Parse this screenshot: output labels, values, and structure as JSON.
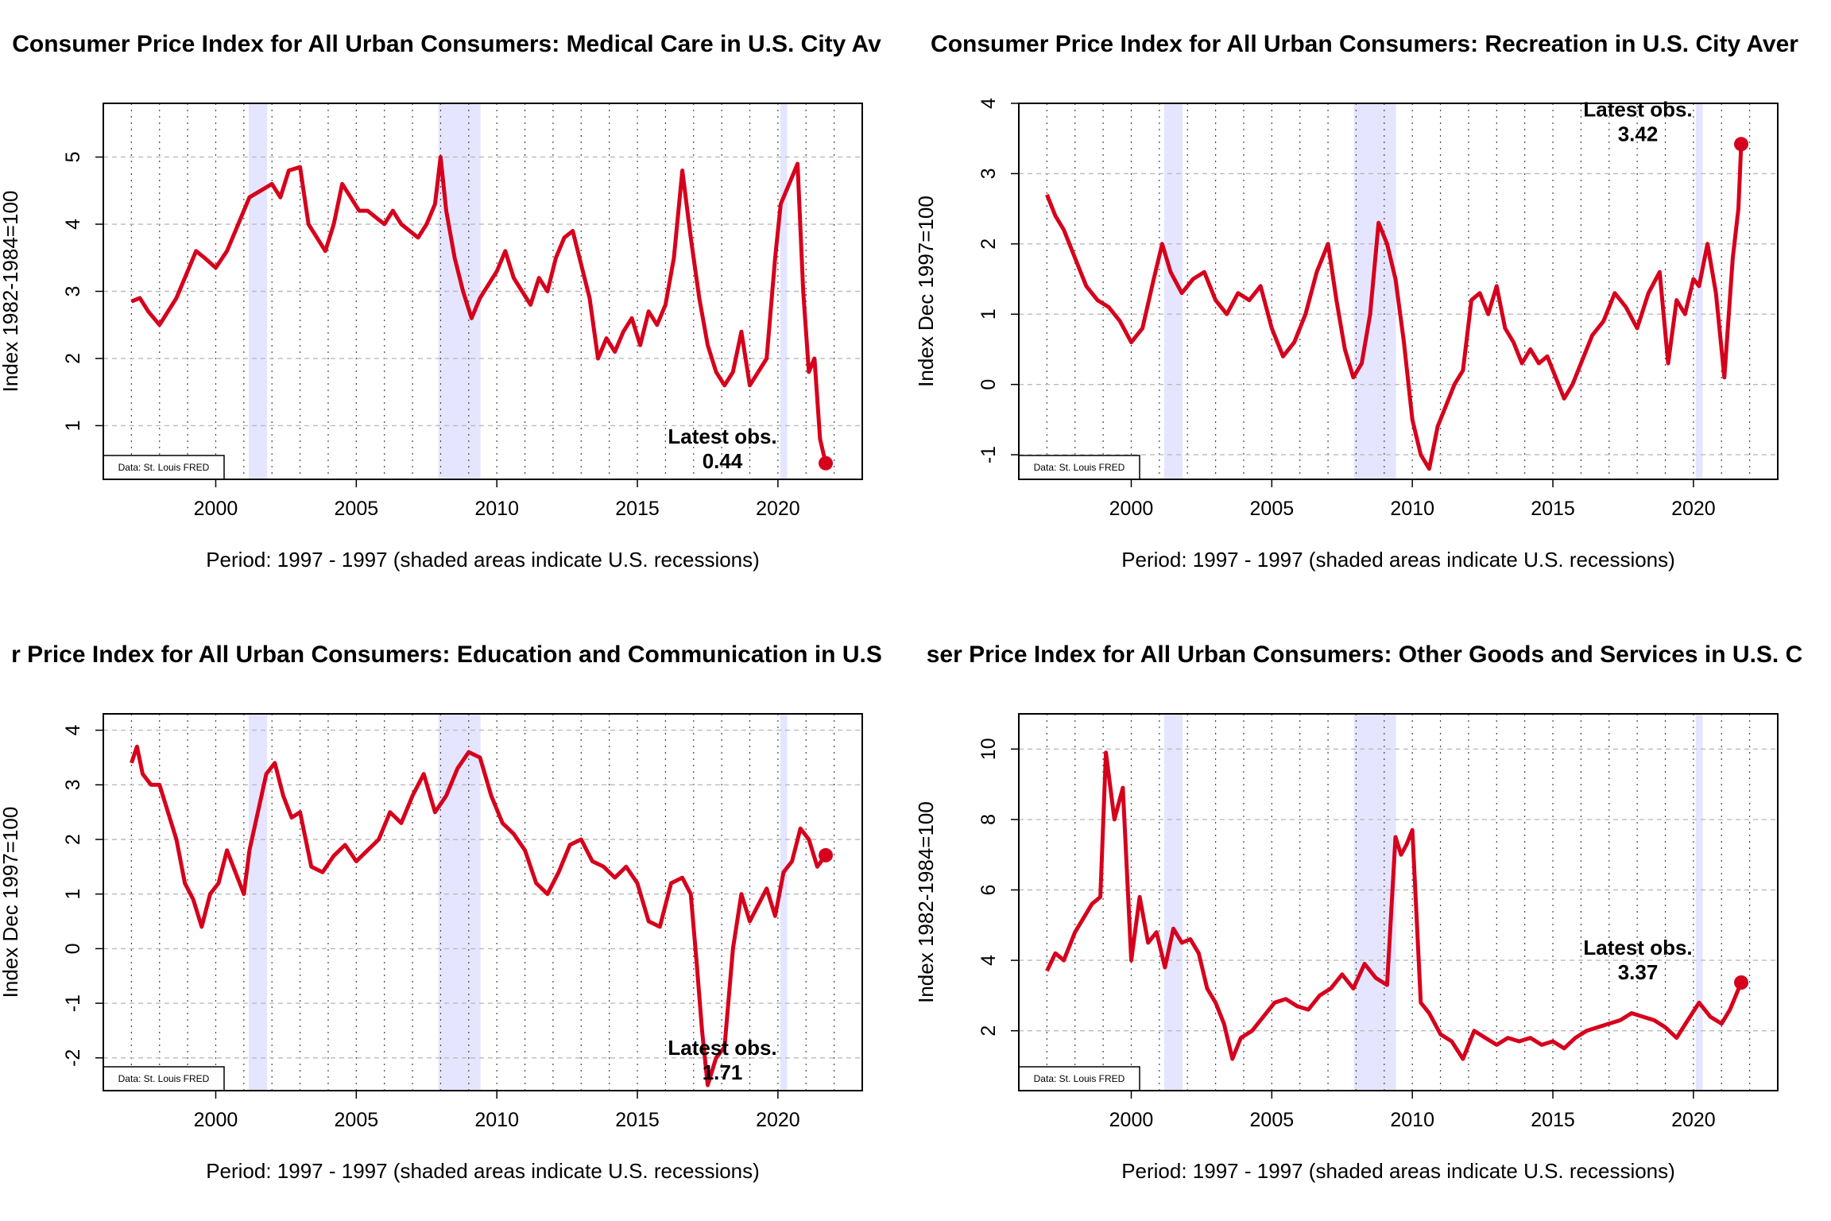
{
  "source_label": "Data: St. Louis FRED",
  "colors": {
    "line": "#d6001c",
    "recession": "#e5e5ff",
    "grid": "#bbbbbb"
  },
  "recessions": [
    [
      2001.17,
      2001.83
    ],
    [
      2007.92,
      2009.42
    ],
    [
      2020.08,
      2020.33
    ]
  ],
  "chart_data": [
    {
      "type": "line",
      "title": "Consumer Price Index for All Urban Consumers: Medical Care in U.S. City Av",
      "xlabel": "Period: 1997 - 1997 (shaded areas indicate U.S. recessions)",
      "ylabel": "Index 1982-1984=100",
      "xlim": [
        1996,
        2023
      ],
      "ylim": [
        0.2,
        5.8
      ],
      "xticks": [
        "2000",
        "2005",
        "2010",
        "2015",
        "2020"
      ],
      "yticks": [
        "1",
        "2",
        "3",
        "4",
        "5"
      ],
      "latest_label": "Latest obs.",
      "latest_value": "0.44",
      "series": [
        {
          "x": [
            1997.0,
            1997.3,
            1997.6,
            1998.0,
            1998.3,
            1998.6,
            1999.0,
            1999.3,
            1999.6,
            2000.0,
            2000.4,
            2000.8,
            2001.2,
            2001.6,
            2002.0,
            2002.3,
            2002.6,
            2003.0,
            2003.3,
            2003.6,
            2003.9,
            2004.2,
            2004.5,
            2004.8,
            2005.1,
            2005.4,
            2005.7,
            2006.0,
            2006.3,
            2006.6,
            2006.9,
            2007.2,
            2007.5,
            2007.8,
            2008.0,
            2008.2,
            2008.5,
            2008.8,
            2009.1,
            2009.4,
            2009.7,
            2010.0,
            2010.3,
            2010.6,
            2010.9,
            2011.2,
            2011.5,
            2011.8,
            2012.1,
            2012.4,
            2012.7,
            2013.0,
            2013.3,
            2013.6,
            2013.9,
            2014.2,
            2014.5,
            2014.8,
            2015.1,
            2015.4,
            2015.7,
            2016.0,
            2016.3,
            2016.6,
            2016.9,
            2017.2,
            2017.5,
            2017.8,
            2018.1,
            2018.4,
            2018.7,
            2019.0,
            2019.3,
            2019.6,
            2019.9,
            2020.1,
            2020.4,
            2020.7,
            2020.9,
            2021.1,
            2021.3,
            2021.5,
            2021.7
          ],
          "y": [
            2.85,
            2.9,
            2.7,
            2.5,
            2.7,
            2.9,
            3.3,
            3.6,
            3.5,
            3.35,
            3.6,
            4.0,
            4.4,
            4.5,
            4.6,
            4.4,
            4.8,
            4.85,
            4.0,
            3.8,
            3.6,
            4.0,
            4.6,
            4.4,
            4.2,
            4.2,
            4.1,
            4.0,
            4.2,
            4.0,
            3.9,
            3.8,
            4.0,
            4.3,
            5.0,
            4.2,
            3.5,
            3.0,
            2.6,
            2.9,
            3.1,
            3.3,
            3.6,
            3.2,
            3.0,
            2.8,
            3.2,
            3.0,
            3.5,
            3.8,
            3.9,
            3.4,
            2.9,
            2.0,
            2.3,
            2.1,
            2.4,
            2.6,
            2.2,
            2.7,
            2.5,
            2.8,
            3.5,
            4.8,
            3.8,
            2.9,
            2.2,
            1.8,
            1.6,
            1.8,
            2.4,
            1.6,
            1.8,
            2.0,
            3.5,
            4.3,
            4.6,
            4.9,
            3.0,
            1.8,
            2.0,
            0.8,
            0.44
          ]
        }
      ]
    },
    {
      "type": "line",
      "title": "Consumer Price Index for All Urban Consumers: Recreation in U.S. City Aver",
      "xlabel": "Period: 1997 - 1997 (shaded areas indicate U.S. recessions)",
      "ylabel": "Index Dec 1997=100",
      "xlim": [
        1996,
        2023
      ],
      "ylim": [
        -1.35,
        4.0
      ],
      "xticks": [
        "2000",
        "2005",
        "2010",
        "2015",
        "2020"
      ],
      "yticks": [
        "-1",
        "0",
        "1",
        "2",
        "3",
        "4"
      ],
      "latest_label": "Latest obs.",
      "latest_value": "3.42",
      "series": [
        {
          "x": [
            1997.0,
            1997.3,
            1997.6,
            1998.0,
            1998.4,
            1998.8,
            1999.2,
            1999.6,
            2000.0,
            2000.4,
            2000.8,
            2001.1,
            2001.4,
            2001.8,
            2002.2,
            2002.6,
            2003.0,
            2003.4,
            2003.8,
            2004.2,
            2004.6,
            2005.0,
            2005.4,
            2005.8,
            2006.2,
            2006.6,
            2007.0,
            2007.3,
            2007.6,
            2007.9,
            2008.2,
            2008.5,
            2008.8,
            2009.1,
            2009.4,
            2009.7,
            2010.0,
            2010.3,
            2010.6,
            2010.9,
            2011.2,
            2011.5,
            2011.8,
            2012.1,
            2012.4,
            2012.7,
            2013.0,
            2013.3,
            2013.6,
            2013.9,
            2014.2,
            2014.5,
            2014.8,
            2015.1,
            2015.4,
            2015.7,
            2016.0,
            2016.4,
            2016.8,
            2017.2,
            2017.6,
            2018.0,
            2018.4,
            2018.8,
            2019.1,
            2019.4,
            2019.7,
            2020.0,
            2020.2,
            2020.5,
            2020.8,
            2021.1,
            2021.4,
            2021.6,
            2021.7
          ],
          "y": [
            2.7,
            2.4,
            2.2,
            1.8,
            1.4,
            1.2,
            1.1,
            0.9,
            0.6,
            0.8,
            1.5,
            2.0,
            1.6,
            1.3,
            1.5,
            1.6,
            1.2,
            1.0,
            1.3,
            1.2,
            1.4,
            0.8,
            0.4,
            0.6,
            1.0,
            1.6,
            2.0,
            1.2,
            0.5,
            0.1,
            0.3,
            1.0,
            2.3,
            2.0,
            1.5,
            0.6,
            -0.5,
            -1.0,
            -1.2,
            -0.6,
            -0.3,
            0.0,
            0.2,
            1.2,
            1.3,
            1.0,
            1.4,
            0.8,
            0.6,
            0.3,
            0.5,
            0.3,
            0.4,
            0.1,
            -0.2,
            0.0,
            0.3,
            0.7,
            0.9,
            1.3,
            1.1,
            0.8,
            1.3,
            1.6,
            0.3,
            1.2,
            1.0,
            1.5,
            1.4,
            2.0,
            1.3,
            0.1,
            1.8,
            2.5,
            3.42
          ]
        }
      ]
    },
    {
      "type": "line",
      "title": "r Price Index for All Urban Consumers: Education and Communication in U.S",
      "xlabel": "Period: 1997 - 1997 (shaded areas indicate U.S. recessions)",
      "ylabel": "Index Dec 1997=100",
      "xlim": [
        1996,
        2023
      ],
      "ylim": [
        -2.6,
        4.3
      ],
      "xticks": [
        "2000",
        "2005",
        "2010",
        "2015",
        "2020"
      ],
      "yticks": [
        "-2",
        "-1",
        "0",
        "1",
        "2",
        "3",
        "4"
      ],
      "latest_label": "Latest obs.",
      "latest_value": "1.71",
      "series": [
        {
          "x": [
            1997.0,
            1997.2,
            1997.4,
            1997.7,
            1998.0,
            1998.3,
            1998.6,
            1998.9,
            1999.2,
            1999.5,
            1999.8,
            2000.1,
            2000.4,
            2000.7,
            2001.0,
            2001.2,
            2001.5,
            2001.8,
            2002.1,
            2002.4,
            2002.7,
            2003.0,
            2003.4,
            2003.8,
            2004.2,
            2004.6,
            2005.0,
            2005.4,
            2005.8,
            2006.2,
            2006.6,
            2007.0,
            2007.4,
            2007.8,
            2008.2,
            2008.6,
            2009.0,
            2009.4,
            2009.8,
            2010.2,
            2010.6,
            2011.0,
            2011.4,
            2011.8,
            2012.2,
            2012.6,
            2013.0,
            2013.4,
            2013.8,
            2014.2,
            2014.6,
            2015.0,
            2015.4,
            2015.8,
            2016.2,
            2016.6,
            2016.9,
            2017.1,
            2017.3,
            2017.5,
            2017.8,
            2018.1,
            2018.4,
            2018.7,
            2019.0,
            2019.3,
            2019.6,
            2019.9,
            2020.2,
            2020.5,
            2020.8,
            2021.1,
            2021.4,
            2021.7
          ],
          "y": [
            3.4,
            3.7,
            3.2,
            3.0,
            3.0,
            2.5,
            2.0,
            1.2,
            0.9,
            0.4,
            1.0,
            1.2,
            1.8,
            1.4,
            1.0,
            1.8,
            2.5,
            3.2,
            3.4,
            2.8,
            2.4,
            2.5,
            1.5,
            1.4,
            1.7,
            1.9,
            1.6,
            1.8,
            2.0,
            2.5,
            2.3,
            2.8,
            3.2,
            2.5,
            2.8,
            3.3,
            3.6,
            3.5,
            2.8,
            2.3,
            2.1,
            1.8,
            1.2,
            1.0,
            1.4,
            1.9,
            2.0,
            1.6,
            1.5,
            1.3,
            1.5,
            1.2,
            0.5,
            0.4,
            1.2,
            1.3,
            1.0,
            -0.2,
            -1.5,
            -2.5,
            -2.0,
            -1.8,
            0.0,
            1.0,
            0.5,
            0.8,
            1.1,
            0.6,
            1.4,
            1.6,
            2.2,
            2.0,
            1.5,
            1.71
          ]
        }
      ]
    },
    {
      "type": "line",
      "title": "ser Price Index for All Urban Consumers: Other Goods and Services in U.S. C",
      "xlabel": "Period: 1997 - 1997 (shaded areas indicate U.S. recessions)",
      "ylabel": "Index 1982-1984=100",
      "xlim": [
        1996,
        2023
      ],
      "ylim": [
        0.3,
        11.0
      ],
      "xticks": [
        "2000",
        "2005",
        "2010",
        "2015",
        "2020"
      ],
      "yticks": [
        "2",
        "4",
        "6",
        "8",
        "10"
      ],
      "latest_label": "Latest obs.",
      "latest_value": "3.37",
      "series": [
        {
          "x": [
            1997.0,
            1997.3,
            1997.6,
            1998.0,
            1998.3,
            1998.6,
            1998.9,
            1999.1,
            1999.4,
            1999.7,
            2000.0,
            2000.3,
            2000.6,
            2000.9,
            2001.2,
            2001.5,
            2001.8,
            2002.1,
            2002.4,
            2002.7,
            2003.0,
            2003.3,
            2003.6,
            2003.9,
            2004.3,
            2004.7,
            2005.1,
            2005.5,
            2005.9,
            2006.3,
            2006.7,
            2007.1,
            2007.5,
            2007.9,
            2008.3,
            2008.7,
            2009.1,
            2009.4,
            2009.6,
            2009.8,
            2010.0,
            2010.3,
            2010.6,
            2011.0,
            2011.4,
            2011.8,
            2012.2,
            2012.6,
            2013.0,
            2013.4,
            2013.8,
            2014.2,
            2014.6,
            2015.0,
            2015.4,
            2015.8,
            2016.2,
            2016.6,
            2017.0,
            2017.4,
            2017.8,
            2018.2,
            2018.6,
            2019.0,
            2019.4,
            2019.8,
            2020.2,
            2020.6,
            2021.0,
            2021.3,
            2021.7
          ],
          "y": [
            3.7,
            4.2,
            4.0,
            4.8,
            5.2,
            5.6,
            5.8,
            9.9,
            8.0,
            8.9,
            4.0,
            5.8,
            4.5,
            4.8,
            3.8,
            4.9,
            4.5,
            4.6,
            4.2,
            3.2,
            2.8,
            2.2,
            1.2,
            1.8,
            2.0,
            2.4,
            2.8,
            2.9,
            2.7,
            2.6,
            3.0,
            3.2,
            3.6,
            3.2,
            3.9,
            3.5,
            3.3,
            7.5,
            7.0,
            7.3,
            7.7,
            2.8,
            2.5,
            1.9,
            1.7,
            1.2,
            2.0,
            1.8,
            1.6,
            1.8,
            1.7,
            1.8,
            1.6,
            1.7,
            1.5,
            1.8,
            2.0,
            2.1,
            2.2,
            2.3,
            2.5,
            2.4,
            2.3,
            2.1,
            1.8,
            2.3,
            2.8,
            2.4,
            2.2,
            2.6,
            3.37
          ]
        }
      ]
    }
  ]
}
